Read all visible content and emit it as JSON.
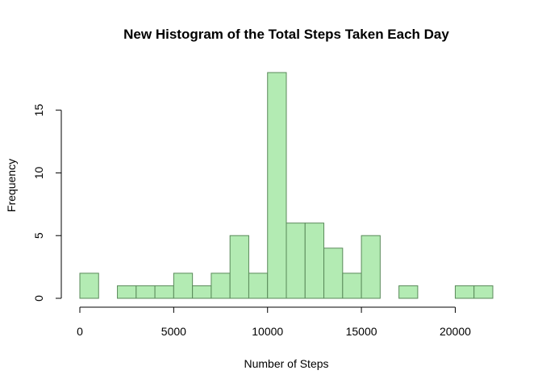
{
  "chart_data": {
    "type": "bar",
    "title": "New Histogram of the Total Steps Taken Each Day",
    "xlabel": "Number of Steps",
    "ylabel": "Frequency",
    "bar_color": "#b3ebb3",
    "bar_border_color": "#5a8a5a",
    "bin_width": 1000,
    "bins": [
      {
        "start": 0,
        "end": 1000,
        "count": 2
      },
      {
        "start": 1000,
        "end": 2000,
        "count": 0
      },
      {
        "start": 2000,
        "end": 3000,
        "count": 1
      },
      {
        "start": 3000,
        "end": 4000,
        "count": 1
      },
      {
        "start": 4000,
        "end": 5000,
        "count": 1
      },
      {
        "start": 5000,
        "end": 6000,
        "count": 2
      },
      {
        "start": 6000,
        "end": 7000,
        "count": 1
      },
      {
        "start": 7000,
        "end": 8000,
        "count": 2
      },
      {
        "start": 8000,
        "end": 9000,
        "count": 5
      },
      {
        "start": 9000,
        "end": 10000,
        "count": 2
      },
      {
        "start": 10000,
        "end": 11000,
        "count": 18
      },
      {
        "start": 11000,
        "end": 12000,
        "count": 6
      },
      {
        "start": 12000,
        "end": 13000,
        "count": 6
      },
      {
        "start": 13000,
        "end": 14000,
        "count": 4
      },
      {
        "start": 14000,
        "end": 15000,
        "count": 2
      },
      {
        "start": 15000,
        "end": 16000,
        "count": 5
      },
      {
        "start": 16000,
        "end": 17000,
        "count": 0
      },
      {
        "start": 17000,
        "end": 18000,
        "count": 1
      },
      {
        "start": 18000,
        "end": 19000,
        "count": 0
      },
      {
        "start": 19000,
        "end": 20000,
        "count": 0
      },
      {
        "start": 20000,
        "end": 21000,
        "count": 1
      },
      {
        "start": 21000,
        "end": 22000,
        "count": 1
      }
    ],
    "xlim": [
      0,
      22000
    ],
    "ylim": [
      0,
      18
    ],
    "x_ticks": [
      0,
      5000,
      10000,
      15000,
      20000
    ],
    "x_tick_labels": [
      "0",
      "5000",
      "10000",
      "15000",
      "20000"
    ],
    "y_ticks": [
      0,
      5,
      10,
      15
    ],
    "y_tick_labels": [
      "0",
      "5",
      "10",
      "15"
    ],
    "grid": false,
    "legend": "none"
  }
}
